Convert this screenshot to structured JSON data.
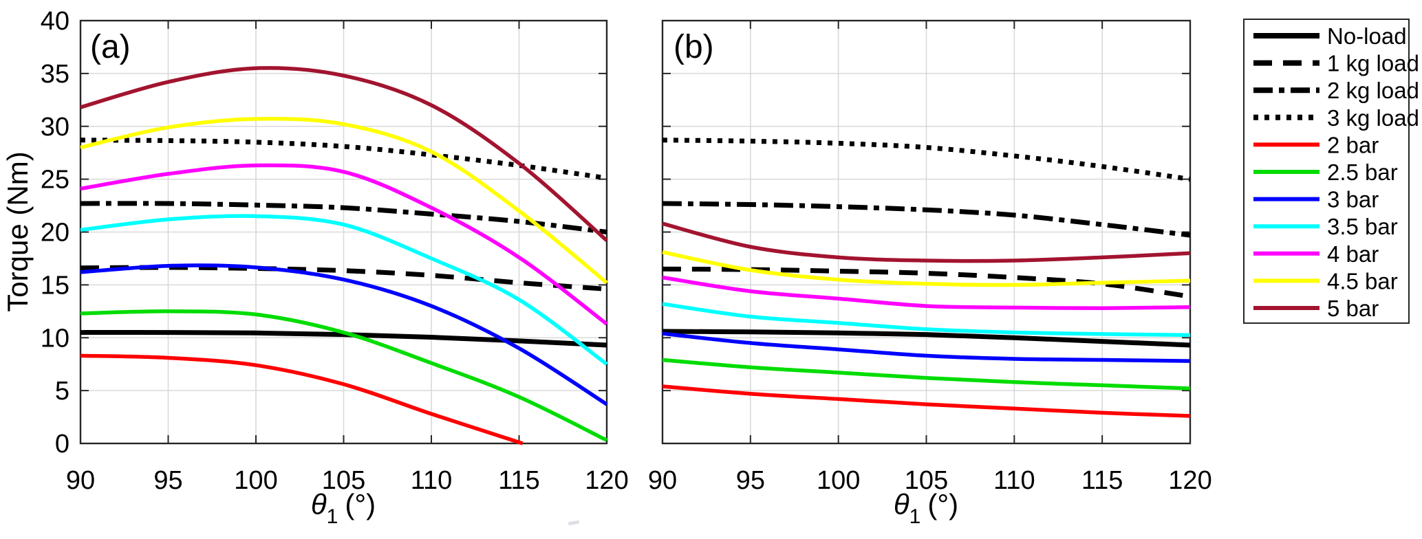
{
  "figure": {
    "background": "#ffffff",
    "axis_color": "#262626",
    "grid_color": "#d9d9d9",
    "ylabel": "Torque (Nm)",
    "xlabel": {
      "symbol": "θ",
      "subscript": "1",
      "unit": "(°)"
    },
    "xlim": [
      90,
      120
    ],
    "ylim": [
      0,
      40
    ],
    "x_ticks": [
      90,
      95,
      100,
      105,
      110,
      115,
      120
    ],
    "y_ticks": [
      0,
      5,
      10,
      15,
      20,
      25,
      30,
      35,
      40
    ],
    "grid": true
  },
  "legend": {
    "position": "right-outside",
    "entries": [
      {
        "label": "No-load",
        "color": "#000000",
        "style": "solid"
      },
      {
        "label": "1 kg load",
        "color": "#000000",
        "style": "dashed"
      },
      {
        "label": "2 kg load",
        "color": "#000000",
        "style": "dashdot"
      },
      {
        "label": "3 kg load",
        "color": "#000000",
        "style": "dotted"
      },
      {
        "label": "2 bar",
        "color": "#ff0000",
        "style": "solid"
      },
      {
        "label": "2.5 bar",
        "color": "#00dc00",
        "style": "solid"
      },
      {
        "label": "3 bar",
        "color": "#0000ff",
        "style": "solid"
      },
      {
        "label": "3.5 bar",
        "color": "#00ffff",
        "style": "solid"
      },
      {
        "label": "4 bar",
        "color": "#ff00ff",
        "style": "solid"
      },
      {
        "label": "4.5 bar",
        "color": "#ffff00",
        "style": "solid"
      },
      {
        "label": "5 bar",
        "color": "#a2142f",
        "style": "solid"
      }
    ]
  },
  "chart_data": [
    {
      "type": "line",
      "panel_label": "(a)",
      "xlabel": "theta_1 (deg)",
      "ylabel": "Torque (Nm)",
      "xlim": [
        90,
        120
      ],
      "ylim": [
        0,
        40
      ],
      "x": [
        90,
        95,
        100,
        105,
        110,
        115,
        120
      ],
      "series": [
        {
          "name": "No-load",
          "color": "#000000",
          "style": "solid",
          "values": [
            10.5,
            10.5,
            10.45,
            10.3,
            10.05,
            9.7,
            9.3
          ]
        },
        {
          "name": "1 kg load",
          "color": "#000000",
          "style": "dashed",
          "values": [
            16.6,
            16.65,
            16.55,
            16.35,
            15.9,
            15.2,
            14.6
          ]
        },
        {
          "name": "2 kg load",
          "color": "#000000",
          "style": "dashdot",
          "values": [
            22.7,
            22.7,
            22.55,
            22.3,
            21.7,
            21.0,
            20.0
          ]
        },
        {
          "name": "3 kg load",
          "color": "#000000",
          "style": "dotted",
          "values": [
            28.7,
            28.65,
            28.5,
            28.1,
            27.3,
            26.3,
            25.1
          ]
        },
        {
          "name": "2 bar",
          "color": "#ff0000",
          "style": "solid",
          "x": [
            90,
            95,
            100,
            105,
            110,
            115.2
          ],
          "values": [
            8.3,
            8.1,
            7.4,
            5.6,
            2.8,
            0
          ]
        },
        {
          "name": "2.5 bar",
          "color": "#00dc00",
          "style": "solid",
          "values": [
            12.3,
            12.5,
            12.2,
            10.5,
            7.6,
            4.4,
            0.3
          ]
        },
        {
          "name": "3 bar",
          "color": "#0000ff",
          "style": "solid",
          "values": [
            16.2,
            16.8,
            16.65,
            15.5,
            13.0,
            9.0,
            3.7
          ]
        },
        {
          "name": "3.5 bar",
          "color": "#00ffff",
          "style": "solid",
          "values": [
            20.2,
            21.2,
            21.5,
            20.7,
            17.5,
            13.6,
            7.5
          ]
        },
        {
          "name": "4 bar",
          "color": "#ff00ff",
          "style": "solid",
          "values": [
            24.1,
            25.5,
            26.3,
            25.7,
            22.3,
            17.6,
            11.3
          ]
        },
        {
          "name": "4.5 bar",
          "color": "#ffff00",
          "style": "solid",
          "values": [
            28.0,
            29.9,
            30.7,
            30.2,
            27.6,
            22.0,
            15.2
          ]
        },
        {
          "name": "5 bar",
          "color": "#a2142f",
          "style": "solid",
          "values": [
            31.8,
            34.2,
            35.5,
            34.8,
            32.0,
            26.5,
            19.2
          ]
        }
      ]
    },
    {
      "type": "line",
      "panel_label": "(b)",
      "xlabel": "theta_1 (deg)",
      "ylabel": "Torque (Nm)",
      "xlim": [
        90,
        120
      ],
      "ylim": [
        0,
        40
      ],
      "x": [
        90,
        95,
        100,
        105,
        110,
        115,
        120
      ],
      "series": [
        {
          "name": "No-load",
          "color": "#000000",
          "style": "solid",
          "values": [
            10.6,
            10.55,
            10.45,
            10.3,
            10.0,
            9.65,
            9.3
          ]
        },
        {
          "name": "1 kg load",
          "color": "#000000",
          "style": "dashed",
          "values": [
            16.5,
            16.45,
            16.3,
            16.1,
            15.7,
            15.1,
            13.9
          ]
        },
        {
          "name": "2 kg load",
          "color": "#000000",
          "style": "dashdot",
          "values": [
            22.7,
            22.6,
            22.4,
            22.1,
            21.6,
            20.7,
            19.7
          ]
        },
        {
          "name": "3 kg load",
          "color": "#000000",
          "style": "dotted",
          "values": [
            28.7,
            28.6,
            28.4,
            28.0,
            27.2,
            26.2,
            25.0
          ]
        },
        {
          "name": "2 bar",
          "color": "#ff0000",
          "style": "solid",
          "values": [
            5.4,
            4.7,
            4.2,
            3.7,
            3.3,
            2.9,
            2.6
          ]
        },
        {
          "name": "2.5 bar",
          "color": "#00dc00",
          "style": "solid",
          "values": [
            7.9,
            7.2,
            6.7,
            6.2,
            5.8,
            5.5,
            5.2
          ]
        },
        {
          "name": "3 bar",
          "color": "#0000ff",
          "style": "solid",
          "values": [
            10.4,
            9.5,
            8.9,
            8.3,
            8.0,
            7.9,
            7.8
          ]
        },
        {
          "name": "3.5 bar",
          "color": "#00ffff",
          "style": "solid",
          "values": [
            13.2,
            12.0,
            11.4,
            10.8,
            10.5,
            10.35,
            10.25
          ]
        },
        {
          "name": "4 bar",
          "color": "#ff00ff",
          "style": "solid",
          "values": [
            15.7,
            14.4,
            13.7,
            13.0,
            12.85,
            12.8,
            12.9
          ]
        },
        {
          "name": "4.5 bar",
          "color": "#ffff00",
          "style": "solid",
          "values": [
            18.1,
            16.4,
            15.5,
            15.1,
            15.0,
            15.2,
            15.4
          ]
        },
        {
          "name": "5 bar",
          "color": "#a2142f",
          "style": "solid",
          "values": [
            20.8,
            18.6,
            17.6,
            17.3,
            17.3,
            17.6,
            18.0
          ]
        }
      ]
    }
  ]
}
